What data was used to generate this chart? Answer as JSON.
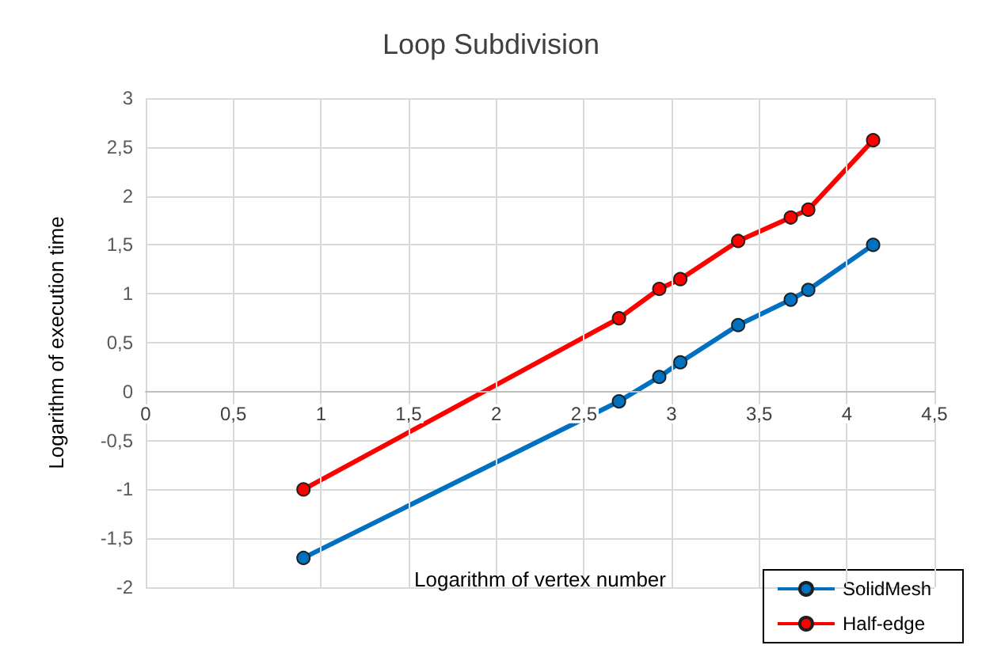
{
  "chart_data": {
    "type": "line",
    "title": "Loop Subdivision",
    "xlabel": "Logarithm of vertex number",
    "ylabel": "Logarithm of execution time",
    "x": [
      0.9,
      2.7,
      2.93,
      3.05,
      3.38,
      3.68,
      3.78,
      4.15
    ],
    "series": [
      {
        "name": "SolidMesh",
        "color": "#0070c0",
        "values": [
          -1.7,
          -0.1,
          0.15,
          0.3,
          0.68,
          0.94,
          1.04,
          1.5
        ]
      },
      {
        "name": "Half-edge",
        "color": "#ff0000",
        "values": [
          -1.0,
          0.75,
          1.05,
          1.15,
          1.54,
          1.78,
          1.86,
          2.57
        ]
      }
    ],
    "xlim": [
      0,
      4.5
    ],
    "xticks": [
      0,
      {
        "value": 0.5,
        "label": "0,5"
      },
      1,
      {
        "value": 1.5,
        "label": "1,5"
      },
      2,
      {
        "value": 2.5,
        "label": "2,5"
      },
      3,
      {
        "value": 3.5,
        "label": "3,5"
      },
      4,
      {
        "value": 4.5,
        "label": "4,5"
      }
    ],
    "ylim": [
      -2,
      3
    ],
    "yticks": [
      -2,
      {
        "value": -1.5,
        "label": "-1,5"
      },
      -1,
      {
        "value": -0.5,
        "label": "-0,5"
      },
      0,
      {
        "value": 0.5,
        "label": "0,5"
      },
      1,
      {
        "value": 1.5,
        "label": "1,5"
      },
      2,
      {
        "value": 2.5,
        "label": "2,5"
      },
      3
    ],
    "grid": true,
    "legend": "bottom right",
    "marker": "circle",
    "line_style": "solid"
  }
}
